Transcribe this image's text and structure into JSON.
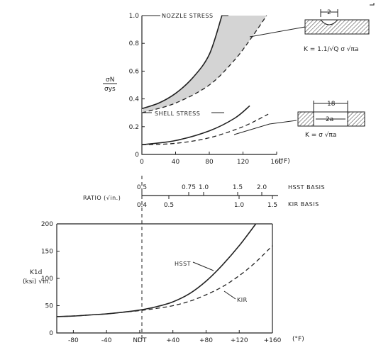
{
  "chart_data": [
    {
      "type": "line",
      "ylabel_top": "σN",
      "ylabel_bottom": "σys",
      "x_unit": "(°F)",
      "xlim": [
        0,
        160
      ],
      "ylim": [
        0,
        1.0
      ],
      "x_ticks": [
        "0",
        "40",
        "80",
        "120",
        "160"
      ],
      "y_ticks": [
        "0",
        "0.2",
        "0.4",
        "0.6",
        "0.8",
        "1.0"
      ],
      "annotations": {
        "nozzle": "NOZZLE STRESS",
        "shell": "SHELL STRESS"
      },
      "series": [
        {
          "group": "nozzle",
          "style": "solid",
          "points": [
            [
              0,
              0.33
            ],
            [
              20,
              0.37
            ],
            [
              40,
              0.44
            ],
            [
              60,
              0.55
            ],
            [
              80,
              0.72
            ],
            [
              95,
              1.0
            ]
          ]
        },
        {
          "group": "nozzle",
          "style": "dashed",
          "points": [
            [
              0,
              0.3
            ],
            [
              40,
              0.37
            ],
            [
              80,
              0.5
            ],
            [
              110,
              0.68
            ],
            [
              130,
              0.84
            ],
            [
              148,
              1.0
            ]
          ]
        },
        {
          "group": "shell",
          "style": "solid",
          "points": [
            [
              0,
              0.07
            ],
            [
              40,
              0.1
            ],
            [
              80,
              0.17
            ],
            [
              110,
              0.26
            ],
            [
              128,
              0.35
            ]
          ]
        },
        {
          "group": "shell",
          "style": "dashed",
          "points": [
            [
              0,
              0.07
            ],
            [
              40,
              0.08
            ],
            [
              80,
              0.12
            ],
            [
              120,
              0.2
            ],
            [
              150,
              0.29
            ]
          ]
        }
      ]
    },
    {
      "type": "scale",
      "label": "RATIO (√in.)",
      "hsst_basis_label": "HSST BASIS",
      "kir_basis_label": "K​IR BASIS",
      "kir_basis_text": "KIR BASIS",
      "hsst_ticks": [
        "0.5",
        "0.75",
        "1.0",
        "1.5",
        "2.0"
      ],
      "kir_ticks": [
        "0.4",
        "0.5",
        "1.0",
        "1.5"
      ]
    },
    {
      "type": "line",
      "ylabel_top": "K1d",
      "ylabel_bottom": "(ksi) √in.",
      "x_unit": "(°F)",
      "xlim": [
        -100,
        160
      ],
      "ylim": [
        0,
        200
      ],
      "x_ticks": [
        "-80",
        "-40",
        "NDT",
        "+40",
        "+80",
        "+120",
        "+160"
      ],
      "y_ticks": [
        "0",
        "50",
        "100",
        "150",
        "200"
      ],
      "series": [
        {
          "name": "HSST",
          "style": "solid",
          "x": [
            -100,
            -80,
            -60,
            -40,
            -20,
            0,
            20,
            40,
            60,
            80,
            100,
            120,
            140
          ],
          "y": [
            30,
            31,
            33,
            35,
            38,
            42,
            48,
            57,
            72,
            95,
            125,
            160,
            200
          ]
        },
        {
          "name": "KIR",
          "style": "dashed",
          "x": [
            -100,
            -80,
            -60,
            -40,
            -20,
            0,
            20,
            40,
            60,
            80,
            100,
            120,
            140,
            160
          ],
          "y": [
            30,
            31,
            33,
            35,
            38,
            41,
            45,
            50,
            58,
            70,
            85,
            105,
            130,
            160
          ]
        }
      ]
    }
  ],
  "diagrams": {
    "nozzle_dimension": "2",
    "nozzle_formula": "K = 1.1/√Q  σ √πa",
    "shell_dimension_outer": "18",
    "shell_dimension_inner": "2a",
    "shell_formula": "K = σ √πa"
  }
}
